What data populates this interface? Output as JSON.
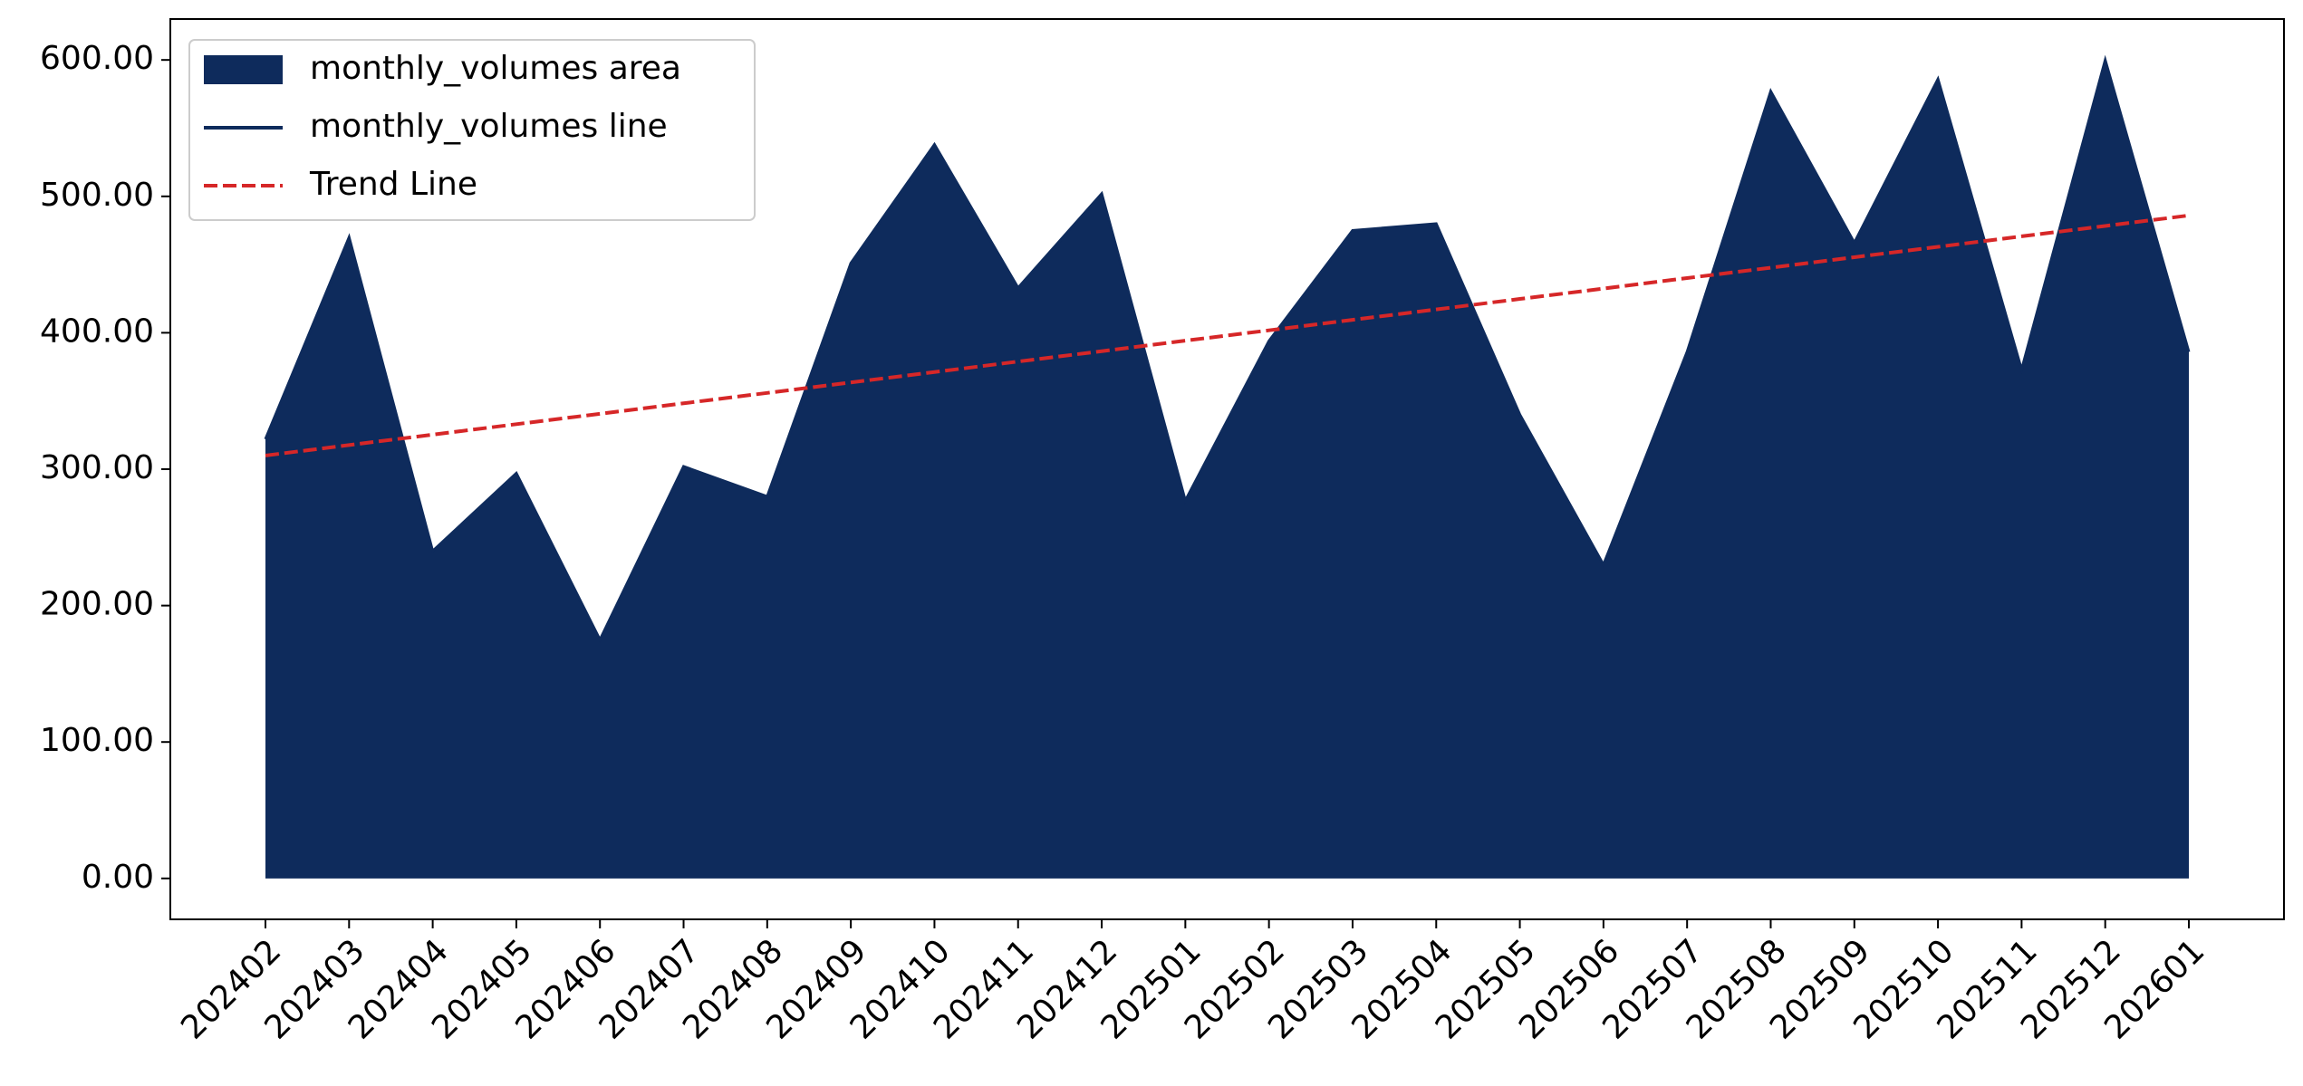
{
  "chart_data": {
    "type": "area",
    "categories": [
      "202402",
      "202403",
      "202404",
      "202405",
      "202406",
      "202407",
      "202408",
      "202409",
      "202410",
      "202411",
      "202412",
      "202501",
      "202502",
      "202503",
      "202504",
      "202505",
      "202506",
      "202507",
      "202508",
      "202509",
      "202510",
      "202511",
      "202512",
      "202601"
    ],
    "series": [
      {
        "name": "monthly_volumes area",
        "kind": "area",
        "color": "#0e2b5c",
        "values": [
          322,
          470,
          240,
          297,
          175,
          302,
          280,
          451,
          538,
          433,
          502,
          277,
          394,
          475,
          480,
          340,
          230,
          386,
          577,
          466,
          586,
          373,
          600,
          386
        ]
      },
      {
        "name": "monthly_volumes line",
        "kind": "line",
        "color": "#0e2b5c",
        "values": [
          322,
          470,
          240,
          297,
          175,
          302,
          280,
          451,
          538,
          433,
          502,
          277,
          394,
          475,
          480,
          340,
          230,
          386,
          577,
          466,
          586,
          373,
          600,
          386
        ]
      },
      {
        "name": "Trend Line",
        "kind": "dashed",
        "color": "#d62728",
        "values": [
          310,
          317.7,
          325.3,
          333.0,
          340.6,
          348.3,
          355.9,
          363.6,
          371.2,
          378.9,
          386.5,
          394.2,
          401.8,
          409.5,
          417.1,
          424.8,
          432.4,
          440.1,
          447.7,
          455.4,
          463.0,
          470.7,
          478.3,
          486
        ]
      }
    ],
    "ylim": [
      -30,
      630
    ],
    "yticks": [
      {
        "value": 0,
        "label": "0.00"
      },
      {
        "value": 100,
        "label": "100.00"
      },
      {
        "value": 200,
        "label": "200.00"
      },
      {
        "value": 300,
        "label": "300.00"
      },
      {
        "value": 400,
        "label": "400.00"
      },
      {
        "value": 500,
        "label": "500.00"
      },
      {
        "value": 600,
        "label": "600.00"
      }
    ],
    "legend": "upper left",
    "grid": false
  }
}
